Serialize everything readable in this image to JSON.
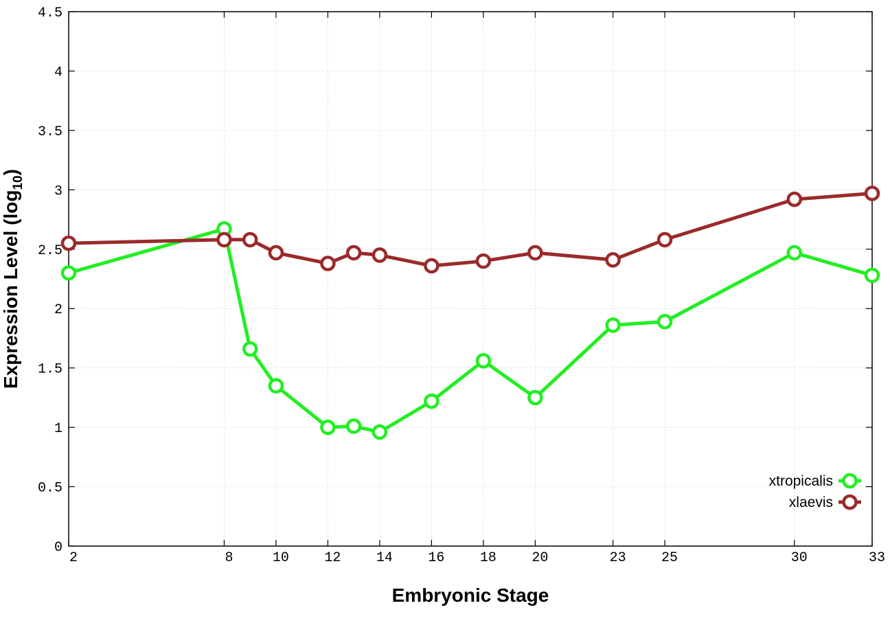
{
  "chart_data": {
    "type": "line",
    "title": "",
    "xlabel": "Embryonic Stage",
    "ylabel_main": "Expression Level (log",
    "ylabel_sub": "10",
    "ylabel_close": ")",
    "x": [
      2,
      8,
      9,
      10,
      12,
      13,
      14,
      16,
      18,
      20,
      23,
      25,
      30,
      33
    ],
    "x_ticks": [
      "2",
      "8",
      "10",
      "12",
      "14",
      "16",
      "18",
      "20",
      "23",
      "25",
      "30",
      "33"
    ],
    "xlim": [
      2,
      33
    ],
    "ylim": [
      0,
      4.5
    ],
    "y_ticks": [
      "0",
      "0.5",
      "1",
      "1.5",
      "2",
      "2.5",
      "3",
      "3.5",
      "4",
      "4.5"
    ],
    "grid": true,
    "legend_position": "bottom-right",
    "series": [
      {
        "name": "xtropicalis",
        "color": "#22ee22",
        "values": [
          2.3,
          2.67,
          1.66,
          1.35,
          1.0,
          1.01,
          0.96,
          1.22,
          1.56,
          1.25,
          1.86,
          1.89,
          2.47,
          2.28
        ]
      },
      {
        "name": "xlaevis",
        "color": "#9b2a2a",
        "values": [
          2.55,
          2.58,
          2.58,
          2.47,
          2.38,
          2.47,
          2.45,
          2.36,
          2.4,
          2.47,
          2.41,
          2.58,
          2.92,
          2.97
        ]
      }
    ]
  }
}
